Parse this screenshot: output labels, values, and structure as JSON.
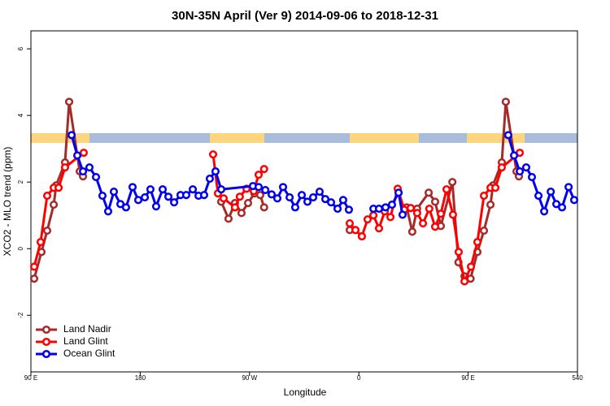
{
  "chart_data": {
    "type": "line",
    "title": "30N-35N April (Ver 9)   2014-09-06 to 2018-12-31",
    "x_label": "Longitude",
    "y_label": "XCO2 - MLO trend (ppm)",
    "xlim": [
      90,
      540
    ],
    "xticks": [
      {
        "value": 90,
        "label": "90 E"
      },
      180,
      {
        "value": 270,
        "label": "90 W"
      },
      {
        "value": 360,
        "label": "0"
      },
      {
        "value": 450,
        "label": "90 E"
      },
      540
    ],
    "ylim": [
      -3.7,
      6.54
    ],
    "yticks": [
      -2,
      0,
      2,
      4,
      6
    ],
    "legend": "bottomleft",
    "series": [
      {
        "name": "Land Nadir",
        "color": "#a52a2a",
        "x": [
          92.7,
          98.7,
          103.4,
          108.8,
          110.8,
          118.1,
          121.5,
          130.2,
          132.9,
          null,
          246.7,
          252.7,
          258,
          263.4,
          268.8,
          274,
          278.8,
          282,
          null,
          352.5,
          357.2,
          362.5,
          null,
          399.4,
          404,
          408,
          417.5,
          422.8,
          427.5,
          437,
          442,
          447,
          452,
          457.6,
          463,
          468.4,
          470.4,
          477.7,
          481,
          489.8,
          491.8
        ],
        "values": [
          -0.9,
          -0.1,
          0.54,
          1.32,
          1.9,
          2.59,
          4.41,
          2.32,
          2.17,
          null,
          1.41,
          0.9,
          1.37,
          1.07,
          1.37,
          1.66,
          1.61,
          1.24,
          null,
          0.56,
          0.56,
          0.37,
          null,
          1.24,
          0.51,
          1.2,
          1.68,
          1.41,
          0.68,
          2.0,
          -0.41,
          -0.83,
          -0.9,
          -0.1,
          0.54,
          1.32,
          1.9,
          2.59,
          4.41,
          2.32,
          2.17
        ]
      },
      {
        "name": "Land Glint",
        "color": "#ff0000",
        "x": [
          92.7,
          98,
          103.4,
          108.8,
          112.8,
          118.1,
          133.5,
          null,
          240,
          244,
          248.7,
          258,
          262,
          267.5,
          273.5,
          277.5,
          282,
          null,
          352.5,
          357.2,
          362.5,
          367.2,
          372,
          376.6,
          381.3,
          386,
          392,
          397.4,
          402.7,
          408,
          412.8,
          418,
          422.8,
          427.5,
          432.2,
          437.5,
          442.2,
          447,
          452.3,
          457.6,
          463,
          468.4,
          472.4,
          477.7,
          492.5
        ],
        "values": [
          -0.54,
          0.2,
          1.59,
          1.83,
          1.83,
          2.44,
          2.88,
          null,
          2.83,
          1.66,
          1.51,
          1.24,
          1.56,
          1.8,
          1.73,
          2.22,
          2.39,
          null,
          0.76,
          0.56,
          0.37,
          0.88,
          1.0,
          0.61,
          1.12,
          0.95,
          1.8,
          1.17,
          1.22,
          1.07,
          0.76,
          1.2,
          0.66,
          1.05,
          1.78,
          1.02,
          -0.1,
          -0.98,
          -0.54,
          0.2,
          1.59,
          1.83,
          1.83,
          2.44,
          2.88
        ]
      },
      {
        "name": "Ocean Glint",
        "color": "#0000ee",
        "x": [
          123.5,
          128.2,
          132.9,
          138.2,
          143.6,
          148.9,
          153.6,
          158.3,
          163.7,
          168.3,
          173.7,
          178.4,
          183.8,
          188.4,
          193.1,
          198.5,
          203.2,
          207.9,
          213.2,
          217.9,
          223.3,
          228,
          232.6,
          237.3,
          242,
          246.7,
          272.8,
          277.5,
          283,
          288.2,
          292.9,
          297.6,
          303,
          307.6,
          313,
          317.7,
          322.4,
          327.7,
          332.4,
          337.1,
          342.5,
          347.1,
          351.8,
          null,
          372,
          376.6,
          382,
          387.3,
          392.7,
          396,
          null,
          483,
          487.8,
          492.5,
          497.8,
          502.5,
          507.9,
          512.6,
          518,
          522.6,
          527.3,
          532.7,
          537.3
        ],
        "values": [
          3.41,
          2.8,
          2.32,
          2.44,
          2.15,
          1.59,
          1.12,
          1.71,
          1.34,
          1.24,
          1.85,
          1.46,
          1.54,
          1.78,
          1.27,
          1.78,
          1.56,
          1.39,
          1.61,
          1.61,
          1.78,
          1.59,
          1.61,
          2.1,
          2.32,
          1.78,
          1.88,
          1.85,
          1.76,
          1.63,
          1.51,
          1.85,
          1.54,
          1.24,
          1.61,
          1.41,
          1.54,
          1.71,
          1.49,
          1.39,
          1.2,
          1.46,
          1.17,
          null,
          1.2,
          1.2,
          1.24,
          1.32,
          1.68,
          1.02,
          null,
          3.41,
          2.8,
          2.32,
          2.44,
          2.15,
          1.59,
          1.12,
          1.71,
          1.34,
          1.24,
          1.85,
          1.46
        ]
      }
    ]
  }
}
